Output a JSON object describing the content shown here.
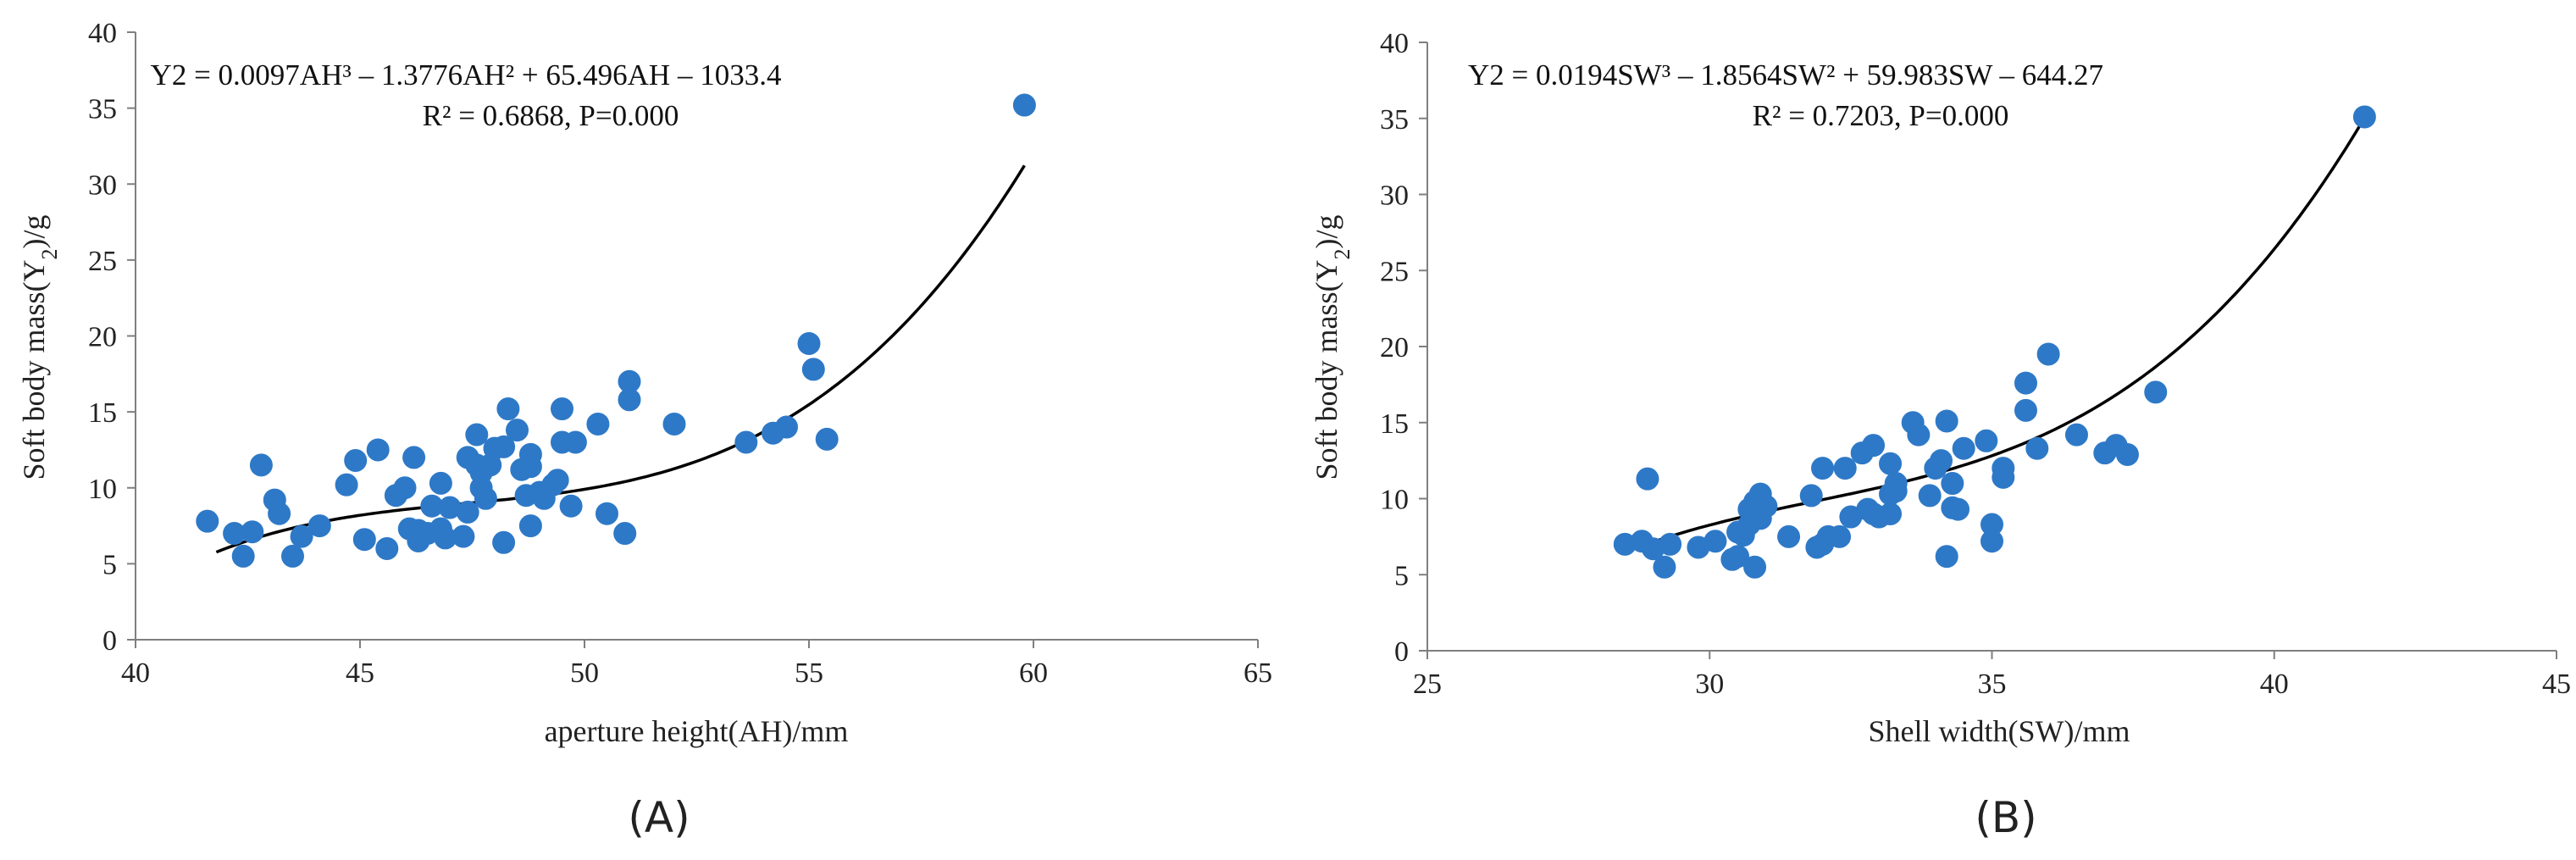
{
  "chart_data": [
    {
      "type": "scatter",
      "panel_label": "(A)",
      "equation_line1": "Y2 = 0.0097AH³ – 1.3776AH² + 65.496AH – 1033.4",
      "equation_line2": "R² = 0.6868, P=0.000",
      "xlabel": "aperture height(AH)/mm",
      "ylabel_parts": [
        "Soft body mass(Y",
        "2",
        ")/g"
      ],
      "xlim": [
        40,
        65
      ],
      "ylim": [
        0,
        40
      ],
      "xticks": [
        40,
        45,
        50,
        55,
        60,
        65
      ],
      "yticks": [
        0,
        5,
        10,
        15,
        20,
        25,
        30,
        35,
        40
      ],
      "fit": {
        "coefficients": [
          0.0097,
          -1.3776,
          65.496,
          -1033.4
        ],
        "x_range": [
          41.8,
          59.8
        ]
      },
      "x": [
        41.6,
        42.2,
        42.4,
        42.6,
        42.8,
        43.1,
        43.2,
        43.5,
        43.7,
        44.1,
        44.7,
        44.9,
        45.1,
        45.4,
        45.6,
        45.8,
        46.0,
        46.1,
        46.2,
        46.3,
        46.3,
        46.5,
        46.6,
        46.8,
        46.8,
        46.9,
        47.0,
        47.3,
        47.4,
        47.4,
        47.6,
        47.6,
        47.7,
        47.7,
        47.8,
        47.9,
        48.0,
        48.2,
        48.2,
        48.3,
        48.5,
        48.6,
        48.7,
        48.8,
        48.8,
        48.8,
        49.0,
        49.1,
        49.3,
        49.4,
        49.5,
        49.5,
        49.7,
        49.8,
        50.3,
        50.5,
        50.9,
        51.0,
        51.0,
        52.0,
        53.6,
        54.2,
        54.5,
        55.0,
        55.1,
        55.4,
        59.8
      ],
      "y": [
        7.8,
        7.0,
        5.5,
        7.1,
        11.5,
        9.2,
        8.3,
        5.5,
        6.8,
        7.5,
        10.2,
        11.8,
        6.6,
        12.5,
        6.0,
        9.5,
        10.0,
        7.3,
        12.0,
        6.5,
        7.2,
        7.0,
        8.8,
        7.3,
        10.3,
        6.7,
        8.7,
        6.8,
        8.4,
        12.0,
        13.5,
        11.5,
        10.0,
        11.0,
        9.3,
        11.5,
        12.6,
        6.4,
        12.7,
        15.2,
        13.8,
        11.2,
        9.5,
        12.2,
        11.4,
        7.5,
        9.7,
        9.3,
        10.2,
        10.5,
        13.0,
        15.2,
        8.8,
        13.0,
        14.2,
        8.3,
        7.0,
        15.8,
        17.0,
        14.2,
        13.0,
        13.6,
        14.0,
        19.5,
        17.8,
        13.2,
        35.2
      ]
    },
    {
      "type": "scatter",
      "panel_label": "(B)",
      "equation_line1": "Y2 = 0.0194SW³ – 1.8564SW² + 59.983SW – 644.27",
      "equation_line2": "R² = 0.7203, P=0.000",
      "xlabel": "Shell width(SW)/mm",
      "ylabel_parts": [
        "Soft body mass(Y",
        "2",
        ")/g"
      ],
      "xlim": [
        25,
        45
      ],
      "ylim": [
        0,
        40
      ],
      "xticks": [
        25,
        30,
        35,
        40,
        45
      ],
      "yticks": [
        0,
        5,
        10,
        15,
        20,
        25,
        30,
        35,
        40
      ],
      "fit": {
        "coefficients": [
          0.0194,
          -1.8564,
          59.983,
          -644.27
        ],
        "x_range": [
          28.5,
          41.6
        ]
      },
      "x": [
        28.5,
        28.9,
        29.0,
        29.2,
        29.8,
        30.1,
        30.4,
        30.5,
        30.6,
        30.7,
        30.7,
        30.8,
        30.8,
        30.9,
        30.9,
        31.0,
        31.8,
        31.9,
        32.0,
        32.1,
        32.3,
        32.4,
        32.5,
        32.7,
        32.8,
        32.9,
        32.9,
        33.0,
        33.2,
        33.2,
        33.2,
        33.3,
        33.3,
        33.6,
        33.7,
        33.9,
        34.0,
        34.1,
        34.2,
        34.2,
        34.3,
        34.3,
        34.4,
        34.5,
        34.9,
        35.0,
        35.0,
        35.2,
        35.2,
        35.6,
        35.6,
        35.8,
        36.0,
        36.5,
        37.0,
        37.2,
        37.4,
        37.9,
        41.6,
        28.8,
        29.3,
        30.5,
        31.4,
        32.0
      ],
      "y": [
        7.0,
        11.3,
        6.7,
        5.5,
        6.8,
        7.2,
        6.0,
        6.2,
        7.6,
        9.3,
        8.3,
        5.5,
        9.8,
        10.3,
        8.7,
        9.5,
        10.2,
        6.8,
        12.0,
        7.5,
        7.5,
        12.0,
        8.8,
        13.0,
        9.3,
        13.5,
        9.0,
        8.8,
        9.0,
        10.3,
        12.3,
        11.0,
        10.5,
        15.0,
        14.2,
        10.2,
        12.0,
        12.5,
        15.1,
        6.2,
        11.0,
        9.4,
        9.3,
        13.3,
        13.8,
        8.3,
        7.2,
        12.0,
        11.4,
        15.8,
        17.6,
        13.3,
        19.5,
        14.2,
        13.0,
        13.5,
        12.9,
        17.0,
        35.1,
        7.2,
        7.0,
        7.8,
        7.5,
        7.0
      ]
    }
  ]
}
